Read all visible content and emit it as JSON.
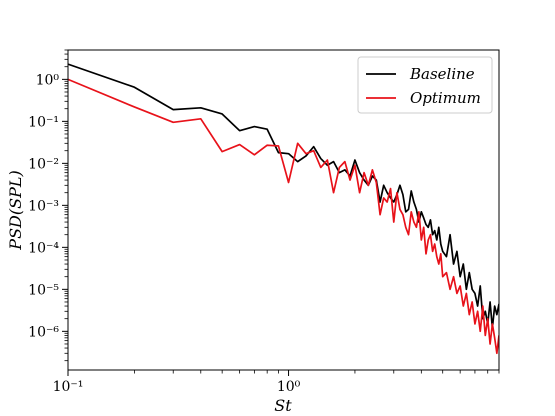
{
  "chart_data": {
    "type": "line",
    "xscale": "log",
    "yscale": "log",
    "xlabel": "St",
    "ylabel": "PSD(SPL)",
    "xlim": [
      0.1,
      9.0
    ],
    "ylim": [
      1.2e-07,
      5
    ],
    "x_ticks": [
      {
        "value": 0.1,
        "label": "10⁻¹"
      },
      {
        "value": 1,
        "label": "10⁰"
      }
    ],
    "y_ticks": [
      {
        "value": 1e-06,
        "label": "10⁻⁶"
      },
      {
        "value": 1e-05,
        "label": "10⁻⁵"
      },
      {
        "value": 0.0001,
        "label": "10⁻⁴"
      },
      {
        "value": 0.001,
        "label": "10⁻³"
      },
      {
        "value": 0.01,
        "label": "10⁻²"
      },
      {
        "value": 0.1,
        "label": "10⁻¹"
      },
      {
        "value": 1,
        "label": "10⁰"
      }
    ],
    "grid": false,
    "legend_position": "top-right",
    "series": [
      {
        "name": "Baseline",
        "color": "#000000",
        "x": [
          0.1,
          0.2,
          0.3,
          0.4,
          0.5,
          0.6,
          0.7,
          0.8,
          0.9,
          1.0,
          1.1,
          1.2,
          1.3,
          1.4,
          1.5,
          1.6,
          1.7,
          1.8,
          1.9,
          2.0,
          2.1,
          2.2,
          2.3,
          2.4,
          2.5,
          2.6,
          2.7,
          2.8,
          2.9,
          3.0,
          3.1,
          3.2,
          3.3,
          3.4,
          3.5,
          3.6,
          3.7,
          3.8,
          3.9,
          4.0,
          4.1,
          4.2,
          4.3,
          4.4,
          4.5,
          4.6,
          4.7,
          4.8,
          4.9,
          5.0,
          5.2,
          5.4,
          5.6,
          5.8,
          6.0,
          6.2,
          6.4,
          6.6,
          6.8,
          7.0,
          7.2,
          7.4,
          7.6,
          7.8,
          8.0,
          8.2,
          8.4,
          8.6,
          8.8,
          9.0
        ],
        "y": [
          2.3,
          0.65,
          0.19,
          0.21,
          0.15,
          0.06,
          0.075,
          0.065,
          0.018,
          0.017,
          0.011,
          0.015,
          0.025,
          0.013,
          0.009,
          0.011,
          0.006,
          0.007,
          0.005,
          0.012,
          0.006,
          0.004,
          0.003,
          0.005,
          0.004,
          0.0012,
          0.003,
          0.002,
          0.0015,
          0.0012,
          0.0018,
          0.003,
          0.0018,
          0.0007,
          0.0008,
          0.0022,
          0.0012,
          0.0008,
          0.0004,
          0.0007,
          0.0005,
          0.00035,
          0.0003,
          0.00045,
          0.0002,
          0.00025,
          0.00015,
          0.0003,
          0.00012,
          8e-05,
          6e-05,
          0.0002,
          4e-05,
          8e-05,
          2e-05,
          4e-05,
          1e-05,
          2.5e-05,
          1e-05,
          8e-06,
          4e-06,
          1.2e-05,
          2e-06,
          3e-06,
          1.5e-06,
          5e-06,
          1.2e-06,
          4e-06,
          2.5e-06,
          4.5e-06
        ]
      },
      {
        "name": "Optimum",
        "color": "#e8121a",
        "x": [
          0.1,
          0.2,
          0.3,
          0.4,
          0.5,
          0.6,
          0.7,
          0.8,
          0.9,
          1.0,
          1.1,
          1.2,
          1.3,
          1.4,
          1.5,
          1.6,
          1.7,
          1.8,
          1.9,
          2.0,
          2.1,
          2.2,
          2.3,
          2.4,
          2.5,
          2.6,
          2.7,
          2.8,
          2.9,
          3.0,
          3.1,
          3.2,
          3.3,
          3.4,
          3.5,
          3.6,
          3.7,
          3.8,
          3.9,
          4.0,
          4.1,
          4.2,
          4.3,
          4.4,
          4.5,
          4.6,
          4.7,
          4.8,
          4.9,
          5.0,
          5.2,
          5.4,
          5.6,
          5.8,
          6.0,
          6.2,
          6.4,
          6.6,
          6.8,
          7.0,
          7.2,
          7.4,
          7.6,
          7.8,
          8.0,
          8.2,
          8.4,
          8.6,
          8.8,
          9.0
        ],
        "y": [
          1.0,
          0.22,
          0.095,
          0.115,
          0.019,
          0.028,
          0.016,
          0.027,
          0.026,
          0.0035,
          0.03,
          0.017,
          0.02,
          0.008,
          0.012,
          0.002,
          0.008,
          0.011,
          0.004,
          0.009,
          0.002,
          0.006,
          0.003,
          0.007,
          0.0035,
          0.0006,
          0.0015,
          0.0012,
          0.0025,
          0.0004,
          0.002,
          0.0008,
          0.0006,
          0.0003,
          0.0002,
          0.0007,
          0.0004,
          0.0003,
          0.0007,
          0.00015,
          0.0003,
          7e-05,
          0.00015,
          0.0002,
          8e-05,
          0.00012,
          6e-05,
          4e-05,
          7e-05,
          2e-05,
          2.5e-05,
          1e-05,
          2e-05,
          8e-06,
          1.2e-05,
          4e-06,
          8e-06,
          2.5e-06,
          5e-06,
          1.5e-06,
          3e-06,
          1e-06,
          4e-06,
          8e-07,
          2e-06,
          5e-07,
          1.5e-06,
          7e-07,
          3e-07,
          8e-07
        ]
      }
    ]
  }
}
